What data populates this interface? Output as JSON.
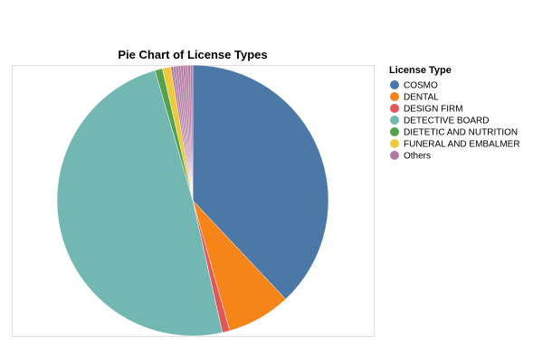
{
  "chart_data": {
    "type": "pie",
    "title": "Pie Chart of License Types",
    "legend_title": "License Type",
    "legend_position": "right",
    "start_angle_deg": 0,
    "direction": "clockwise",
    "categories": [
      "COSMO",
      "DENTAL",
      "DESIGN FIRM",
      "DETECTIVE BOARD",
      "DIETETIC AND NUTRITION",
      "FUNERAL AND EMBALMER",
      "Others"
    ],
    "values": [
      38.0,
      7.6,
      0.9,
      49.0,
      0.9,
      1.0,
      2.6
    ],
    "colors": [
      "#4c78a8",
      "#f58518",
      "#e45756",
      "#72b7b2",
      "#54a24b",
      "#eeca3b",
      "#b279a2"
    ],
    "others_stripes": 9
  }
}
